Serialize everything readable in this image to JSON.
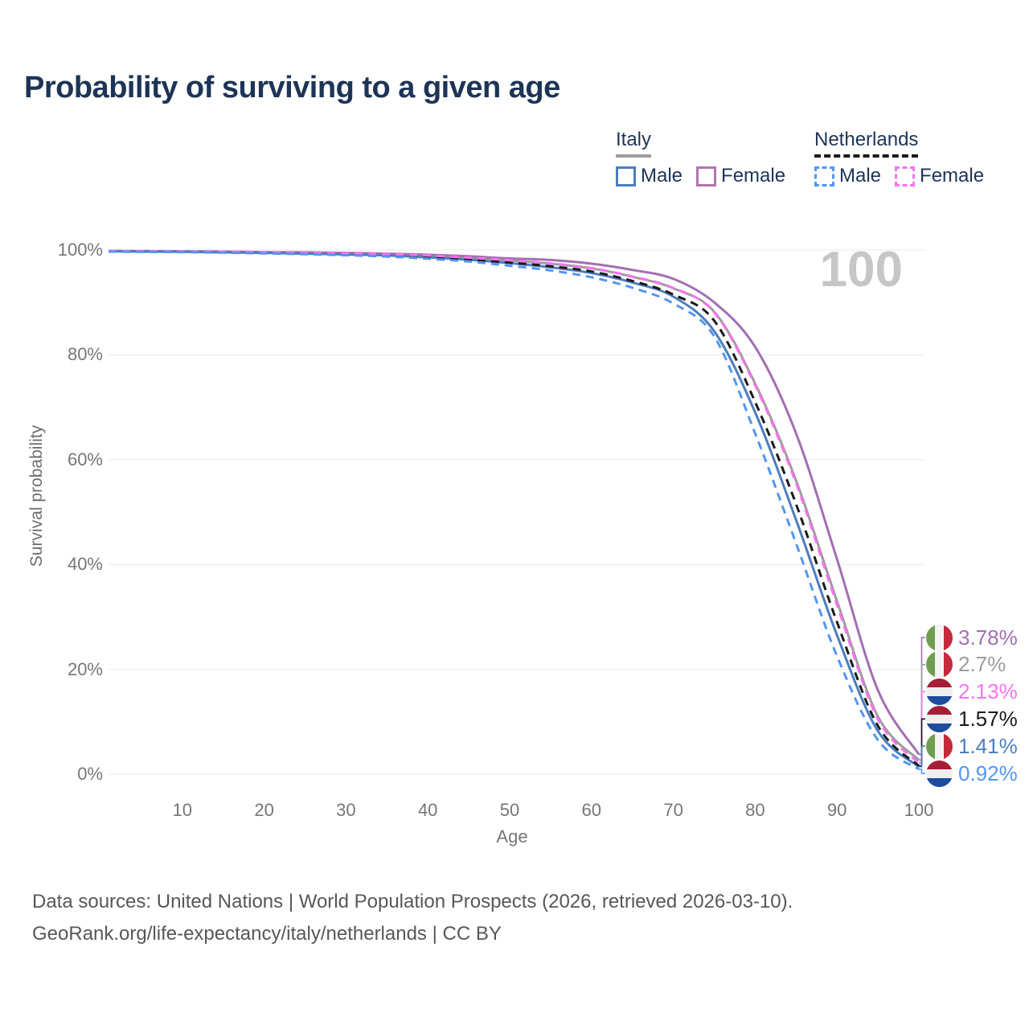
{
  "title": "Probability of surviving to a given age",
  "hovered_age": "100",
  "legend": {
    "groups": [
      {
        "label": "Italy",
        "line_style": "solid",
        "line_color": "#9e9e9e",
        "items": [
          {
            "label": "Male",
            "color": "#4c7ebd"
          },
          {
            "label": "Female",
            "color": "#b273b2"
          }
        ]
      },
      {
        "label": "Netherlands",
        "line_style": "dashed",
        "line_color": "#1a1a1a",
        "items": [
          {
            "label": "Male",
            "color": "#5495f4"
          },
          {
            "label": "Female",
            "color": "#f972ef"
          }
        ]
      }
    ]
  },
  "chart_data": {
    "type": "line",
    "title": "Probability of surviving to a given age",
    "xlabel": "Age",
    "ylabel": "Survival probability",
    "xlim": [
      0,
      100
    ],
    "ylim": [
      0,
      100
    ],
    "grid": "horizontal",
    "legend_position": "top-right",
    "x_ticks": [
      10,
      20,
      30,
      40,
      50,
      60,
      70,
      80,
      90,
      100
    ],
    "y_ticks": [
      0,
      20,
      40,
      60,
      80,
      100
    ],
    "y_tick_labels": [
      "0%",
      "20%",
      "40%",
      "60%",
      "80%",
      "100%"
    ],
    "ages": [
      1,
      5,
      10,
      15,
      20,
      25,
      30,
      35,
      40,
      45,
      50,
      55,
      60,
      65,
      70,
      75,
      80,
      85,
      90,
      95,
      100
    ],
    "series": [
      {
        "id": "italy-female",
        "name": "Italy — Female",
        "country": "italy",
        "sex": "female",
        "color": "#a26fb2",
        "dash": false,
        "end_label": "3.78%",
        "values": [
          99.85,
          99.8,
          99.75,
          99.7,
          99.6,
          99.55,
          99.45,
          99.3,
          99.1,
          98.8,
          98.4,
          98.1,
          97.4,
          96.2,
          94.5,
          90.0,
          81.5,
          65.0,
          41.0,
          16.0,
          3.78
        ]
      },
      {
        "id": "italy-total",
        "name": "Italy — Both sexes",
        "country": "italy",
        "sex": "both",
        "color": "#9c9c9c",
        "dash": false,
        "end_label": "2.7%",
        "values": [
          99.8,
          99.75,
          99.7,
          99.6,
          99.55,
          99.45,
          99.35,
          99.15,
          98.9,
          98.5,
          98.0,
          97.4,
          96.5,
          94.9,
          92.7,
          88.2,
          74.5,
          56.0,
          33.0,
          11.0,
          2.7
        ]
      },
      {
        "id": "netherlands-female",
        "name": "Netherlands — Female",
        "country": "netherlands",
        "sex": "female",
        "color": "#f972ef",
        "dash": true,
        "end_label": "2.13%",
        "values": [
          99.8,
          99.75,
          99.7,
          99.65,
          99.55,
          99.45,
          99.35,
          99.2,
          98.95,
          98.55,
          98.05,
          97.45,
          96.55,
          94.95,
          92.75,
          88.1,
          74.2,
          55.5,
          32.3,
          10.5,
          2.13
        ]
      },
      {
        "id": "netherlands-total",
        "name": "Netherlands — Both sexes",
        "country": "netherlands",
        "sex": "both",
        "color": "#1a1a1a",
        "dash": true,
        "end_label": "1.57%",
        "values": [
          99.75,
          99.7,
          99.65,
          99.55,
          99.45,
          99.35,
          99.2,
          99.0,
          98.7,
          98.25,
          97.6,
          96.9,
          95.9,
          94.1,
          91.5,
          86.5,
          71.0,
          51.5,
          29.0,
          9.2,
          1.57
        ]
      },
      {
        "id": "italy-male",
        "name": "Italy — Male",
        "country": "italy",
        "sex": "male",
        "color": "#4c7ebd",
        "dash": false,
        "end_label": "1.41%",
        "values": [
          99.75,
          99.7,
          99.65,
          99.55,
          99.45,
          99.3,
          99.15,
          98.95,
          98.6,
          98.15,
          97.5,
          96.7,
          95.6,
          93.8,
          91.1,
          84.5,
          69.0,
          48.5,
          26.5,
          8.2,
          1.41
        ]
      },
      {
        "id": "netherlands-male",
        "name": "Netherlands — Male",
        "country": "netherlands",
        "sex": "male",
        "color": "#5495f4",
        "dash": true,
        "end_label": "0.92%",
        "values": [
          99.7,
          99.65,
          99.6,
          99.5,
          99.35,
          99.2,
          99.0,
          98.75,
          98.35,
          97.8,
          97.0,
          96.1,
          94.8,
          92.8,
          89.8,
          83.5,
          65.0,
          44.0,
          22.5,
          6.5,
          0.92
        ]
      }
    ]
  },
  "footer": {
    "line1": "Data sources: United Nations | World Population Prospects (2026, retrieved 2026-03-10).",
    "line2": "GeoRank.org/life-expectancy/italy/netherlands | CC BY"
  }
}
